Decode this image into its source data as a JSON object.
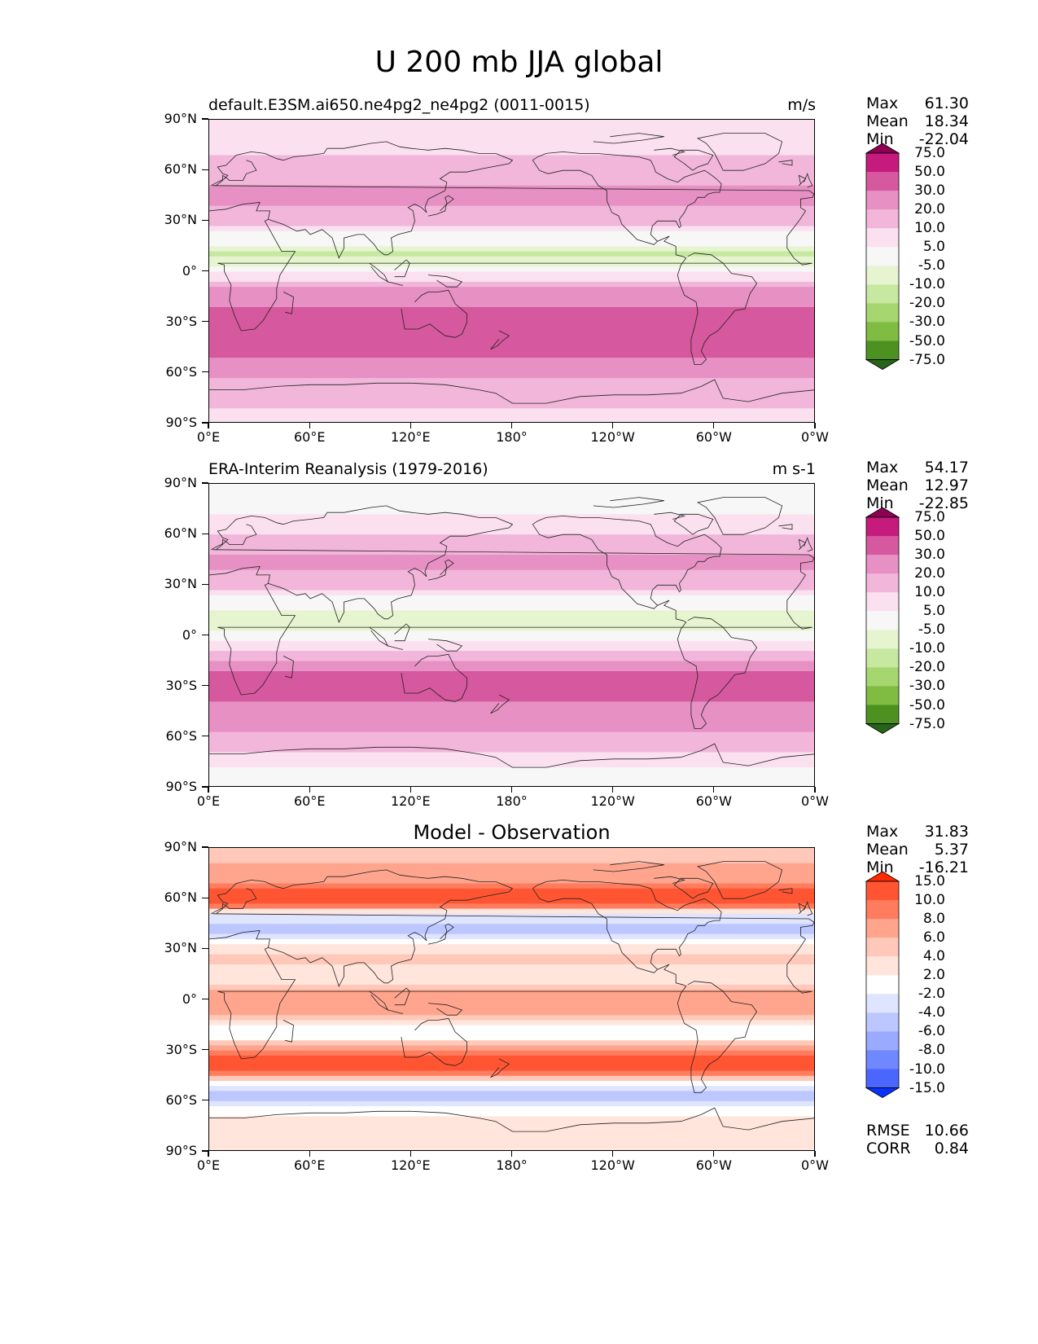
{
  "figure_title": "U 200 mb JJA global",
  "chart_data": [
    {
      "type": "heatmap",
      "subplot": "test",
      "title_left": "default.E3SM.ai650.ne4pg2_ne4pg2 (0011-0015)",
      "title_right": "m/s",
      "x_ticks": [
        "0°E",
        "60°E",
        "120°E",
        "180°",
        "120°W",
        "60°W",
        "0°W"
      ],
      "y_ticks": [
        "90°N",
        "60°N",
        "30°N",
        "0°",
        "30°S",
        "60°S",
        "90°S"
      ],
      "xlim": [
        0,
        360
      ],
      "ylim": [
        -90,
        90
      ],
      "stats": [
        {
          "label": "Max",
          "value": "61.30"
        },
        {
          "label": "Mean",
          "value": "18.34"
        },
        {
          "label": "Min",
          "value": "-22.04"
        }
      ],
      "colorbar": {
        "levels": [
          "75.0",
          "50.0",
          "30.0",
          "20.0",
          "10.0",
          "5.0",
          "-5.0",
          "-10.0",
          "-20.0",
          "-30.0",
          "-50.0",
          "-75.0"
        ],
        "colors": [
          "#8e0152",
          "#c51b7d",
          "#d6589e",
          "#e690c3",
          "#f1b6da",
          "#fbe1ef",
          "#f7f7f7",
          "#e6f5d0",
          "#c7e8a0",
          "#a5d670",
          "#7fbc41",
          "#4d9221",
          "#276419"
        ]
      },
      "zonal_profile": {
        "lat": [
          -90,
          -75,
          -60,
          -50,
          -45,
          -35,
          -30,
          -20,
          -10,
          -5,
          0,
          5,
          10,
          15,
          20,
          30,
          40,
          45,
          55,
          60,
          70,
          80,
          90
        ],
        "u": [
          6,
          12,
          22,
          31,
          34,
          40,
          36,
          30,
          20,
          10,
          4,
          -8,
          -12,
          -8,
          2,
          12,
          21,
          24,
          18,
          15,
          10,
          8,
          6
        ]
      }
    },
    {
      "type": "heatmap",
      "subplot": "reference",
      "title_left": "ERA-Interim Reanalysis (1979-2016)",
      "title_right": "m s-1",
      "x_ticks": [
        "0°E",
        "60°E",
        "120°E",
        "180°",
        "120°W",
        "60°W",
        "0°W"
      ],
      "y_ticks": [
        "90°N",
        "60°N",
        "30°N",
        "0°",
        "30°S",
        "60°S",
        "90°S"
      ],
      "xlim": [
        0,
        360
      ],
      "ylim": [
        -90,
        90
      ],
      "stats": [
        {
          "label": "Max",
          "value": "54.17"
        },
        {
          "label": "Mean",
          "value": "12.97"
        },
        {
          "label": "Min",
          "value": "-22.85"
        }
      ],
      "colorbar": {
        "levels": [
          "75.0",
          "50.0",
          "30.0",
          "20.0",
          "10.0",
          "5.0",
          "-5.0",
          "-10.0",
          "-20.0",
          "-30.0",
          "-50.0",
          "-75.0"
        ],
        "colors": [
          "#8e0152",
          "#c51b7d",
          "#d6589e",
          "#e690c3",
          "#f1b6da",
          "#fbe1ef",
          "#f7f7f7",
          "#e6f5d0",
          "#c7e8a0",
          "#a5d670",
          "#7fbc41",
          "#4d9221",
          "#276419"
        ]
      },
      "zonal_profile": {
        "lat": [
          -90,
          -75,
          -60,
          -50,
          -40,
          -35,
          -30,
          -20,
          -10,
          0,
          5,
          10,
          15,
          20,
          30,
          40,
          45,
          55,
          60,
          70,
          80,
          90
        ],
        "u": [
          2,
          6,
          18,
          28,
          30,
          35,
          38,
          30,
          12,
          2,
          -6,
          -10,
          -6,
          2,
          12,
          22,
          24,
          14,
          10,
          6,
          3,
          2
        ]
      }
    },
    {
      "type": "heatmap",
      "subplot": "difference",
      "title_center": "Model - Observation",
      "x_ticks": [
        "0°E",
        "60°E",
        "120°E",
        "180°",
        "120°W",
        "60°W",
        "0°W"
      ],
      "y_ticks": [
        "90°N",
        "60°N",
        "30°N",
        "0°",
        "30°S",
        "60°S",
        "90°S"
      ],
      "xlim": [
        0,
        360
      ],
      "ylim": [
        -90,
        90
      ],
      "stats": [
        {
          "label": "Max",
          "value": "31.83"
        },
        {
          "label": "Mean",
          "value": "5.37"
        },
        {
          "label": "Min",
          "value": "-16.21"
        }
      ],
      "metrics": [
        {
          "label": "RMSE",
          "value": "10.66"
        },
        {
          "label": "CORR",
          "value": "0.84"
        }
      ],
      "colorbar": {
        "levels": [
          "15.0",
          "10.0",
          "8.0",
          "6.0",
          "4.0",
          "2.0",
          "-2.0",
          "-4.0",
          "-6.0",
          "-8.0",
          "-10.0",
          "-15.0"
        ],
        "colors": [
          "#ff2a00",
          "#ff5533",
          "#ff7d5e",
          "#ffa58e",
          "#ffc8b8",
          "#ffe5dc",
          "#ffffff",
          "#dfe4ff",
          "#bcc7ff",
          "#99aaff",
          "#6f87ff",
          "#4a66ff",
          "#0a32ff"
        ]
      },
      "zonal_profile": {
        "lat": [
          -90,
          -80,
          -70,
          -60,
          -55,
          -45,
          -40,
          -35,
          -25,
          -20,
          -10,
          0,
          10,
          20,
          25,
          35,
          40,
          50,
          55,
          60,
          70,
          80,
          90
        ],
        "u": [
          3,
          4,
          2,
          -4,
          -6,
          6,
          14,
          12,
          4,
          -2,
          6,
          8,
          4,
          2,
          6,
          0,
          -6,
          -2,
          8,
          12,
          8,
          6,
          4
        ]
      }
    }
  ]
}
